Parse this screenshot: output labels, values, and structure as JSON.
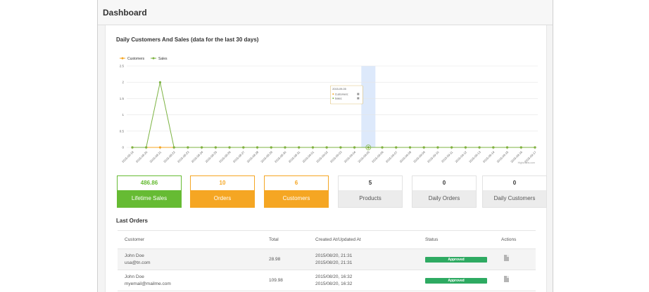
{
  "page": {
    "title": "Dashboard"
  },
  "chart": {
    "title": "Daily Customers And Sales (data for the last 30 days)",
    "credit": "Highcharts.com",
    "tooltip": {
      "date": "2015-09-05",
      "rows": [
        "Customers",
        "Sales"
      ]
    }
  },
  "chart_data": {
    "type": "line",
    "title": "Daily Customers And Sales (data for the last 30 days)",
    "xlabel": "",
    "ylabel": "",
    "ylim": [
      0,
      2.5
    ],
    "y_ticks": [
      "0",
      "0.5",
      "1",
      "1.5",
      "2",
      "2.5"
    ],
    "grid": true,
    "legend_position": "top-left",
    "highlighted_category": "2015-09-05",
    "categories": [
      "2015-08-19",
      "2015-08-20",
      "2015-08-21",
      "2015-08-22",
      "2015-08-23",
      "2015-08-24",
      "2015-08-25",
      "2015-08-26",
      "2015-08-27",
      "2015-08-28",
      "2015-08-29",
      "2015-08-30",
      "2015-08-31",
      "2015-09-01",
      "2015-09-02",
      "2015-09-03",
      "2015-09-04",
      "2015-09-05",
      "2015-09-06",
      "2015-09-07",
      "2015-09-08",
      "2015-09-09",
      "2015-09-10",
      "2015-09-11",
      "2015-09-12",
      "2015-09-13",
      "2015-09-14",
      "2015-09-15",
      "2015-09-16",
      "2015-09-17"
    ],
    "series": [
      {
        "name": "Customers",
        "color": "#f5a623",
        "values": [
          0,
          0,
          0,
          0,
          0,
          0,
          0,
          0,
          0,
          0,
          0,
          0,
          0,
          0,
          0,
          0,
          0,
          0,
          0,
          0,
          0,
          0,
          0,
          0,
          0,
          0,
          0,
          0,
          0,
          0
        ]
      },
      {
        "name": "Sales",
        "color": "#7cb342",
        "values": [
          0,
          0,
          2,
          0,
          0,
          0,
          0,
          0,
          0,
          0,
          0,
          0,
          0,
          0,
          0,
          0,
          0,
          0,
          0,
          0,
          0,
          0,
          0,
          0,
          0,
          0,
          0,
          0,
          0,
          0
        ]
      }
    ]
  },
  "stats": [
    {
      "value": "486.86",
      "label": "Lifetime Sales",
      "style": "green"
    },
    {
      "value": "10",
      "label": "Orders",
      "style": "orange"
    },
    {
      "value": "6",
      "label": "Customers",
      "style": "orange"
    },
    {
      "value": "5",
      "label": "Products",
      "style": "gray"
    },
    {
      "value": "0",
      "label": "Daily Orders",
      "style": "gray"
    },
    {
      "value": "0",
      "label": "Daily Customers",
      "style": "gray"
    }
  ],
  "orders": {
    "title": "Last Orders",
    "headers": {
      "customer": "Customer",
      "total": "Total",
      "created": "Created At/Updated At",
      "status": "Status",
      "actions": "Actions"
    },
    "rows": [
      {
        "name": "John Doe",
        "email": "usa@tn.com",
        "total": "28.98",
        "created": "2015/08/20, 21:31",
        "updated": "2015/08/20, 21:31",
        "status": "Approved"
      },
      {
        "name": "John Doe",
        "email": "myemail@mailme.com",
        "total": "109.98",
        "created": "2015/08/20, 16:32",
        "updated": "2015/08/20, 16:32",
        "status": "Approved"
      }
    ]
  },
  "colors": {
    "green": "#66bb33",
    "orange": "#f5a623",
    "approved": "#2eaa62"
  },
  "icons": {
    "action": "document-icon"
  }
}
